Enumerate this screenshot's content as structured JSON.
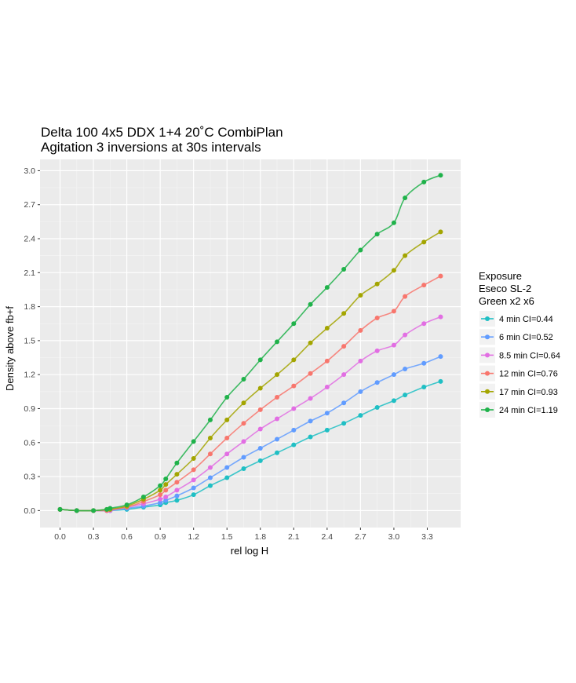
{
  "chart_data": {
    "type": "scatter",
    "title": "Delta 100 4x5 DDX 1+4 20˚C CombiPlan",
    "subtitle": "Agitation 3 inversions at 30s intervals",
    "xlabel": "rel log H",
    "ylabel": "Density above fb+f",
    "xlim": [
      -0.18,
      3.6
    ],
    "ylim": [
      -0.15,
      3.1
    ],
    "x_ticks": [
      "0.0",
      "0.3",
      "0.6",
      "0.9",
      "1.2",
      "1.5",
      "1.8",
      "2.1",
      "2.4",
      "2.7",
      "3.0",
      "3.3"
    ],
    "y_ticks": [
      "0.0",
      "0.3",
      "0.6",
      "0.9",
      "1.2",
      "1.5",
      "1.8",
      "2.1",
      "2.4",
      "2.7",
      "3.0"
    ],
    "grid": true,
    "legend": {
      "position": "right",
      "title_lines": [
        "Exposure",
        "Eseco SL-2",
        "Green x2 x6"
      ]
    },
    "series": [
      {
        "name": "4 min CI=0.44",
        "color": "#1fbfc4",
        "points": [
          [
            0.0,
            0.01
          ],
          [
            0.15,
            0.0
          ],
          [
            0.3,
            0.0
          ],
          [
            0.42,
            0.0
          ],
          [
            0.45,
            0.0
          ],
          [
            0.6,
            0.01
          ],
          [
            0.75,
            0.03
          ],
          [
            0.9,
            0.05
          ],
          [
            0.95,
            0.07
          ],
          [
            1.05,
            0.09
          ],
          [
            1.2,
            0.14
          ],
          [
            1.35,
            0.22
          ],
          [
            1.5,
            0.29
          ],
          [
            1.65,
            0.37
          ],
          [
            1.8,
            0.44
          ],
          [
            1.95,
            0.51
          ],
          [
            2.1,
            0.58
          ],
          [
            2.25,
            0.65
          ],
          [
            2.4,
            0.71
          ],
          [
            2.55,
            0.77
          ],
          [
            2.7,
            0.84
          ],
          [
            2.85,
            0.91
          ],
          [
            3.0,
            0.97
          ],
          [
            3.1,
            1.02
          ],
          [
            3.27,
            1.09
          ],
          [
            3.42,
            1.14
          ]
        ]
      },
      {
        "name": "6 min CI=0.52",
        "color": "#619cff",
        "points": [
          [
            0.0,
            0.01
          ],
          [
            0.15,
            0.0
          ],
          [
            0.3,
            0.0
          ],
          [
            0.42,
            0.0
          ],
          [
            0.45,
            0.0
          ],
          [
            0.6,
            0.02
          ],
          [
            0.75,
            0.04
          ],
          [
            0.9,
            0.07
          ],
          [
            0.95,
            0.09
          ],
          [
            1.05,
            0.13
          ],
          [
            1.2,
            0.2
          ],
          [
            1.35,
            0.29
          ],
          [
            1.5,
            0.38
          ],
          [
            1.65,
            0.47
          ],
          [
            1.8,
            0.55
          ],
          [
            1.95,
            0.63
          ],
          [
            2.1,
            0.71
          ],
          [
            2.25,
            0.79
          ],
          [
            2.4,
            0.86
          ],
          [
            2.55,
            0.95
          ],
          [
            2.7,
            1.05
          ],
          [
            2.85,
            1.13
          ],
          [
            3.0,
            1.2
          ],
          [
            3.1,
            1.25
          ],
          [
            3.27,
            1.3
          ],
          [
            3.42,
            1.36
          ]
        ]
      },
      {
        "name": "8.5 min CI=0.64",
        "color": "#e26ee3",
        "points": [
          [
            0.0,
            0.01
          ],
          [
            0.15,
            0.0
          ],
          [
            0.3,
            0.0
          ],
          [
            0.42,
            0.0
          ],
          [
            0.45,
            0.0
          ],
          [
            0.6,
            0.03
          ],
          [
            0.75,
            0.06
          ],
          [
            0.9,
            0.1
          ],
          [
            0.95,
            0.12
          ],
          [
            1.05,
            0.18
          ],
          [
            1.2,
            0.27
          ],
          [
            1.35,
            0.38
          ],
          [
            1.5,
            0.5
          ],
          [
            1.65,
            0.61
          ],
          [
            1.8,
            0.72
          ],
          [
            1.95,
            0.81
          ],
          [
            2.1,
            0.9
          ],
          [
            2.25,
            0.99
          ],
          [
            2.4,
            1.09
          ],
          [
            2.55,
            1.2
          ],
          [
            2.7,
            1.32
          ],
          [
            2.85,
            1.41
          ],
          [
            3.0,
            1.46
          ],
          [
            3.1,
            1.55
          ],
          [
            3.27,
            1.65
          ],
          [
            3.42,
            1.71
          ]
        ]
      },
      {
        "name": "12 min CI=0.76",
        "color": "#f8766d",
        "points": [
          [
            0.0,
            0.01
          ],
          [
            0.15,
            0.0
          ],
          [
            0.3,
            0.0
          ],
          [
            0.42,
            0.0
          ],
          [
            0.45,
            0.01
          ],
          [
            0.6,
            0.03
          ],
          [
            0.75,
            0.08
          ],
          [
            0.9,
            0.14
          ],
          [
            0.95,
            0.18
          ],
          [
            1.05,
            0.25
          ],
          [
            1.2,
            0.36
          ],
          [
            1.35,
            0.5
          ],
          [
            1.5,
            0.64
          ],
          [
            1.65,
            0.77
          ],
          [
            1.8,
            0.89
          ],
          [
            1.95,
            1.0
          ],
          [
            2.1,
            1.1
          ],
          [
            2.25,
            1.21
          ],
          [
            2.4,
            1.32
          ],
          [
            2.55,
            1.45
          ],
          [
            2.7,
            1.59
          ],
          [
            2.85,
            1.7
          ],
          [
            3.0,
            1.76
          ],
          [
            3.1,
            1.89
          ],
          [
            3.27,
            1.99
          ],
          [
            3.42,
            2.07
          ]
        ]
      },
      {
        "name": "17 min CI=0.93",
        "color": "#a3a500",
        "points": [
          [
            0.0,
            0.01
          ],
          [
            0.15,
            0.0
          ],
          [
            0.3,
            0.0
          ],
          [
            0.42,
            0.01
          ],
          [
            0.45,
            0.01
          ],
          [
            0.6,
            0.04
          ],
          [
            0.75,
            0.1
          ],
          [
            0.9,
            0.18
          ],
          [
            0.95,
            0.23
          ],
          [
            1.05,
            0.32
          ],
          [
            1.2,
            0.46
          ],
          [
            1.35,
            0.64
          ],
          [
            1.5,
            0.8
          ],
          [
            1.65,
            0.95
          ],
          [
            1.8,
            1.08
          ],
          [
            1.95,
            1.2
          ],
          [
            2.1,
            1.33
          ],
          [
            2.25,
            1.48
          ],
          [
            2.4,
            1.61
          ],
          [
            2.55,
            1.74
          ],
          [
            2.7,
            1.9
          ],
          [
            2.85,
            2.0
          ],
          [
            3.0,
            2.12
          ],
          [
            3.1,
            2.25
          ],
          [
            3.27,
            2.37
          ],
          [
            3.42,
            2.46
          ]
        ]
      },
      {
        "name": "24 min CI=1.19",
        "color": "#1fb24a",
        "points": [
          [
            0.0,
            0.01
          ],
          [
            0.15,
            0.0
          ],
          [
            0.3,
            0.0
          ],
          [
            0.42,
            0.01
          ],
          [
            0.45,
            0.02
          ],
          [
            0.6,
            0.05
          ],
          [
            0.75,
            0.12
          ],
          [
            0.9,
            0.22
          ],
          [
            0.95,
            0.28
          ],
          [
            1.05,
            0.42
          ],
          [
            1.2,
            0.61
          ],
          [
            1.35,
            0.8
          ],
          [
            1.5,
            1.0
          ],
          [
            1.65,
            1.16
          ],
          [
            1.8,
            1.33
          ],
          [
            1.95,
            1.49
          ],
          [
            2.1,
            1.65
          ],
          [
            2.25,
            1.82
          ],
          [
            2.4,
            1.97
          ],
          [
            2.55,
            2.13
          ],
          [
            2.7,
            2.3
          ],
          [
            2.85,
            2.44
          ],
          [
            3.0,
            2.54
          ],
          [
            3.1,
            2.76
          ],
          [
            3.27,
            2.9
          ],
          [
            3.42,
            2.96
          ]
        ]
      }
    ]
  }
}
